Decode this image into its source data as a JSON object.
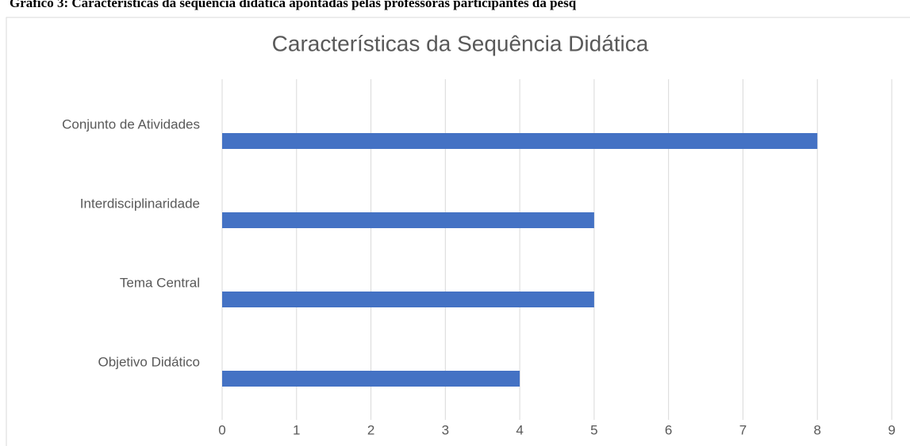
{
  "caption": "Gráfico 3: Características da sequência didática apontadas pelas professoras participantes da pesq",
  "chart_data": {
    "type": "bar",
    "orientation": "horizontal",
    "title": "Características da Sequência Didática",
    "categories": [
      "Conjunto de Atividades",
      "Interdisciplinaridade",
      "Tema Central",
      "Objetivo Didático"
    ],
    "values": [
      8,
      5,
      5,
      4
    ],
    "color": "#4472c4",
    "xlim": [
      0,
      9
    ],
    "xticks": [
      0,
      1,
      2,
      3,
      4,
      5,
      6,
      7,
      8,
      9
    ],
    "grid": true
  }
}
